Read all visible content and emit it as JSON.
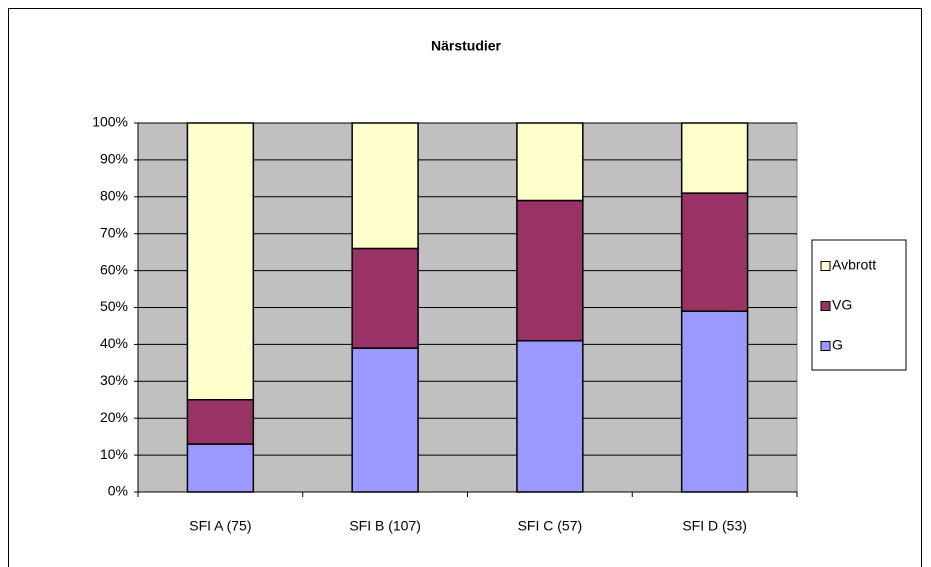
{
  "chart_data": {
    "type": "stacked_bar",
    "title": "Närstudier",
    "categories": [
      "SFI A (75)",
      "SFI B (107)",
      "SFI C (57)",
      "SFI D (53)"
    ],
    "series": [
      {
        "name": "G",
        "color": "#9999ff",
        "values": [
          13,
          39,
          41,
          49
        ]
      },
      {
        "name": "VG",
        "color": "#993366",
        "values": [
          12,
          27,
          38,
          32
        ]
      },
      {
        "name": "Avbrott",
        "color": "#ffffcc",
        "values": [
          75,
          34,
          21,
          19
        ]
      }
    ],
    "ylim": [
      0,
      100
    ],
    "yticks": [
      {
        "value": 0,
        "label": "0%"
      },
      {
        "value": 10,
        "label": "10%"
      },
      {
        "value": 20,
        "label": "20%"
      },
      {
        "value": 30,
        "label": "30%"
      },
      {
        "value": 40,
        "label": "40%"
      },
      {
        "value": 50,
        "label": "50%"
      },
      {
        "value": 60,
        "label": "60%"
      },
      {
        "value": 70,
        "label": "70%"
      },
      {
        "value": 80,
        "label": "80%"
      },
      {
        "value": 90,
        "label": "90%"
      },
      {
        "value": 100,
        "label": "100%"
      }
    ],
    "grid": true,
    "legend": "right",
    "plot_background": "#c0c0c0"
  }
}
